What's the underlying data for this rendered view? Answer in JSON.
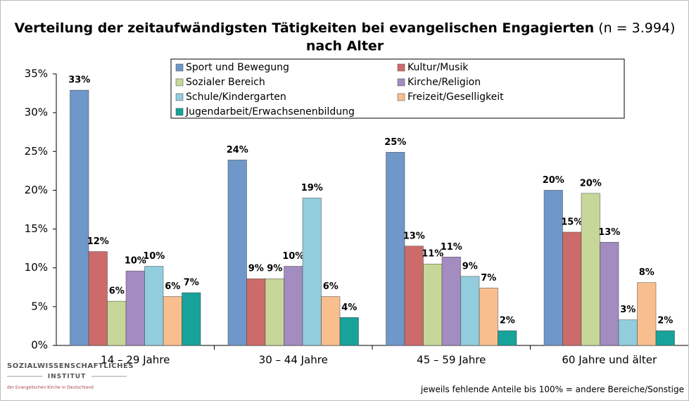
{
  "chart_data": {
    "type": "bar",
    "title": "Verteilung der zeitaufwändigsten Tätigkeiten bei evangelischen Engagierten",
    "title_note": "(n = 3.994)",
    "title_line2": "nach Alter",
    "categories": [
      "14 – 29 Jahre",
      "30 – 44 Jahre",
      "45 – 59 Jahre",
      "60 Jahre und älter"
    ],
    "series": [
      {
        "name": "Sport und Bewegung",
        "color": "#6f97c9",
        "values": [
          32.9,
          23.9,
          24.9,
          20.0
        ],
        "value_labels": [
          "33%",
          "24%",
          "25%",
          "20%"
        ]
      },
      {
        "name": "Kultur/Musik",
        "color": "#cd6b6a",
        "values": [
          12.1,
          8.6,
          12.8,
          14.6
        ],
        "value_labels": [
          "12%",
          "9%",
          "13%",
          "15%"
        ]
      },
      {
        "name": "Sozialer Bereich",
        "color": "#c7d79a",
        "values": [
          5.7,
          8.6,
          10.5,
          19.6
        ],
        "value_labels": [
          "6%",
          "9%",
          "11%",
          "20%"
        ]
      },
      {
        "name": "Kirche/Religion",
        "color": "#a38cc0",
        "values": [
          9.6,
          10.2,
          11.4,
          13.3
        ],
        "value_labels": [
          "10%",
          "10%",
          "11%",
          "13%"
        ]
      },
      {
        "name": "Schule/Kindergarten",
        "color": "#92cddd",
        "values": [
          10.2,
          19.0,
          8.9,
          3.3
        ],
        "value_labels": [
          "10%",
          "19%",
          "9%",
          "3%"
        ]
      },
      {
        "name": "Freizeit/Geselligkeit",
        "color": "#f9be8e",
        "values": [
          6.3,
          6.3,
          7.4,
          8.1
        ],
        "value_labels": [
          "6%",
          "6%",
          "7%",
          "8%"
        ]
      },
      {
        "name": "Jugendarbeit/Erwachsenenbildung",
        "color": "#17a39a",
        "values": [
          6.8,
          3.6,
          1.9,
          1.9
        ],
        "value_labels": [
          "7%",
          "4%",
          "2%",
          "2%"
        ]
      }
    ],
    "ylim": [
      0,
      35
    ],
    "yticks": [
      {
        "value": 0,
        "label": "0%"
      },
      {
        "value": 5,
        "label": "5%"
      },
      {
        "value": 10,
        "label": "10%"
      },
      {
        "value": 15,
        "label": "15%"
      },
      {
        "value": 20,
        "label": "20%"
      },
      {
        "value": 25,
        "label": "25%"
      },
      {
        "value": 30,
        "label": "30%"
      },
      {
        "value": 35,
        "label": "35%"
      }
    ],
    "footnote": "jeweils fehlende Anteile bis 100% = andere Bereiche/Sonstige"
  },
  "logo": {
    "line1": "SOZIALWISSENSCHAFTLICHES",
    "line2": "INSTITUT",
    "line3": "der Evangelischen Kirche in Deutschland"
  }
}
